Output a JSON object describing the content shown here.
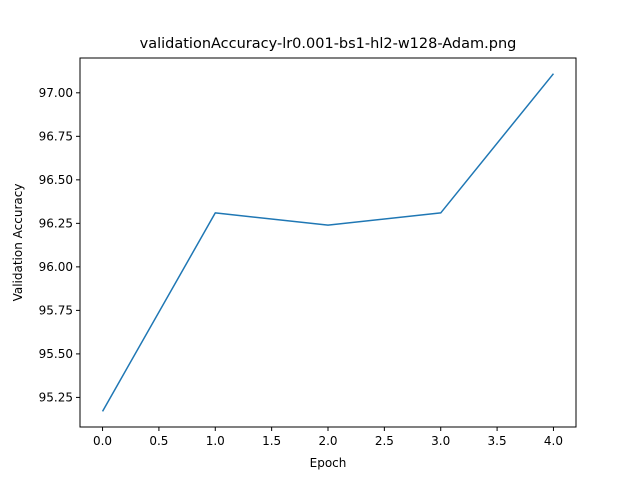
{
  "chart_data": {
    "type": "line",
    "title": "validationAccuracy-lr0.001-bs1-hl2-w128-Adam.png",
    "xlabel": "Epoch",
    "ylabel": "Validation Accuracy",
    "xlim": [
      -0.2,
      4.2
    ],
    "ylim": [
      95.08,
      97.2
    ],
    "xticks": [
      0.0,
      0.5,
      1.0,
      1.5,
      2.0,
      2.5,
      3.0,
      3.5,
      4.0
    ],
    "xtick_labels": [
      "0.0",
      "0.5",
      "1.0",
      "1.5",
      "2.0",
      "2.5",
      "3.0",
      "3.5",
      "4.0"
    ],
    "yticks": [
      95.25,
      95.5,
      95.75,
      96.0,
      96.25,
      96.5,
      96.75,
      97.0
    ],
    "ytick_labels": [
      "95.25",
      "95.50",
      "95.75",
      "96.00",
      "96.25",
      "96.50",
      "96.75",
      "97.00"
    ],
    "grid": false,
    "series": [
      {
        "color": "#1f77b4",
        "x": [
          0,
          1,
          2,
          3,
          4
        ],
        "y": [
          95.17,
          96.31,
          96.24,
          96.31,
          97.11
        ]
      }
    ]
  }
}
